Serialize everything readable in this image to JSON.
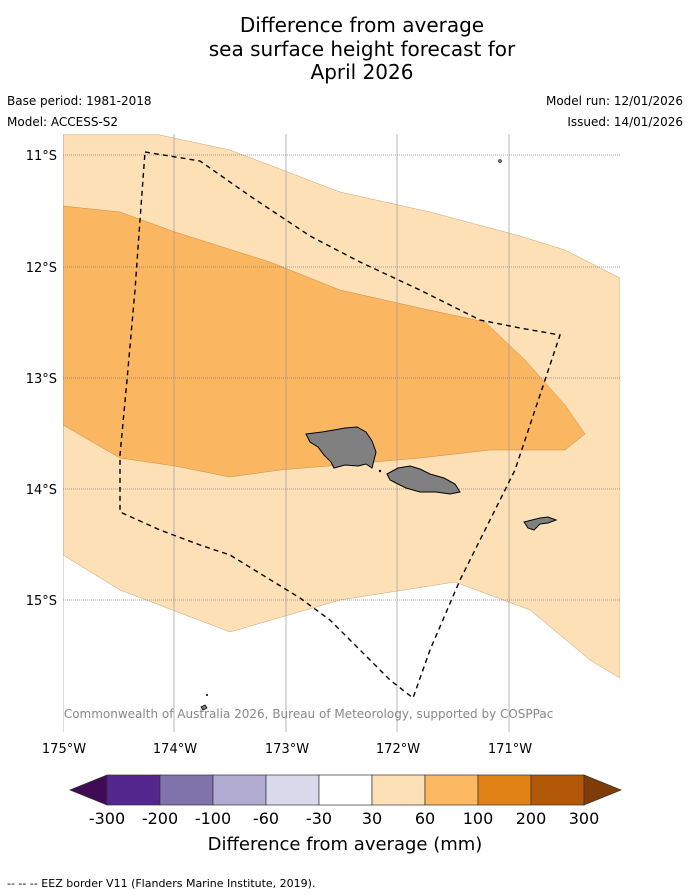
{
  "title": {
    "line1": "Difference from average",
    "line2": "sea surface height forecast for",
    "line3": "April 2026"
  },
  "meta": {
    "base_period": "Base period: 1981-2018",
    "model": "Model: ACCESS-S2",
    "model_run": "Model run: 12/01/2026",
    "issued": "Issued: 14/01/2026"
  },
  "map": {
    "lat_labels": [
      "11°S",
      "12°S",
      "13°S",
      "14°S",
      "15°S"
    ],
    "lon_labels": [
      "175°W",
      "174°W",
      "173°W",
      "172°W",
      "171°W"
    ],
    "copyright": "© Commonwealth of Australia 2026, Bureau of Meteorology, supported by COSPPac",
    "colors": {
      "band_30_60": "#fde0b6",
      "band_60_100": "#fbb662",
      "land": "#808080"
    }
  },
  "colorbar": {
    "label": "Difference from average (mm)",
    "ticks": [
      "-300",
      "-200",
      "-100",
      "-60",
      "-30",
      "30",
      "60",
      "100",
      "200",
      "300"
    ],
    "colors": [
      "#3f0a56",
      "#54278f",
      "#8073ac",
      "#b2abd2",
      "#d8daeb",
      "#ffffff",
      "#fee0b6",
      "#fdb863",
      "#e08214",
      "#b35806",
      "#7f3b08"
    ]
  },
  "footer": "--  --  -- EEZ border V11 (Flanders Marine Institute, 2019)."
}
